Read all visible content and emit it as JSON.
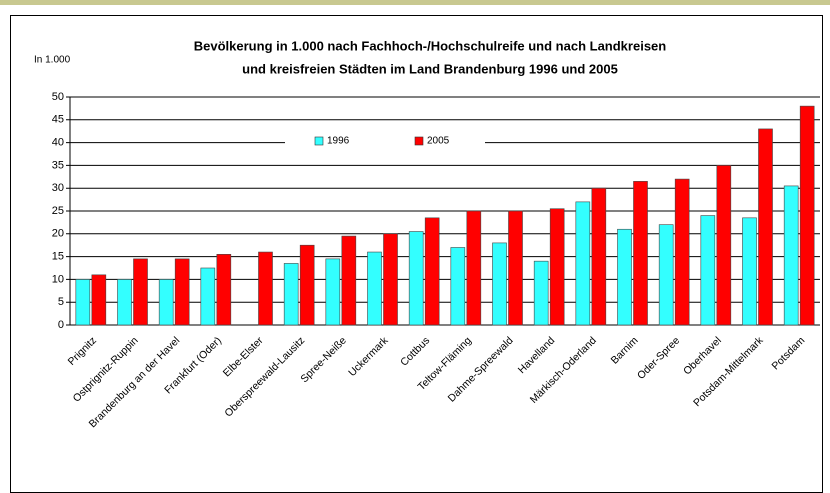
{
  "chart_data": {
    "type": "bar",
    "title": [
      "Bevölkerung in 1.000 nach Fachhoch-/Hochschulreife und nach Landkreisen",
      "und kreisfreien Städten im Land Brandenburg 1996 und 2005"
    ],
    "y_label": "In 1.000",
    "categories": [
      "Prignitz",
      "Ostprignitz-Ruppin",
      "Brandenburg an der Havel",
      "Frankfurt (Oder)",
      "Elbe-Elster",
      "Oberspreewald-Lausitz",
      "Spree-Neiße",
      "Uckermark",
      "Cottbus",
      "Teltow-Fläming",
      "Dahme-Spreewald",
      "Havelland",
      "Märkisch-Oderland",
      "Barnim",
      "Oder-Spree",
      "Oberhavel",
      "Potsdam-Mittelmark",
      "Potsdam"
    ],
    "series": [
      {
        "name": "1996",
        "color": "#33ffff",
        "values": [
          10,
          10,
          10,
          12.5,
          null,
          13.5,
          14.5,
          16,
          20.5,
          17,
          18,
          14,
          27,
          21,
          22,
          24,
          23.5,
          30.5
        ]
      },
      {
        "name": "2005",
        "color": "#ff0000",
        "values": [
          11,
          14.5,
          14.5,
          15.5,
          16,
          17.5,
          19.5,
          20,
          23.5,
          25,
          25,
          25.5,
          30,
          31.5,
          32,
          35,
          43,
          48
        ]
      }
    ],
    "ylim": [
      0,
      50
    ],
    "yticks": [
      0,
      5,
      10,
      15,
      20,
      25,
      30,
      35,
      40,
      45,
      50
    ],
    "grid": true,
    "legend": "top"
  }
}
